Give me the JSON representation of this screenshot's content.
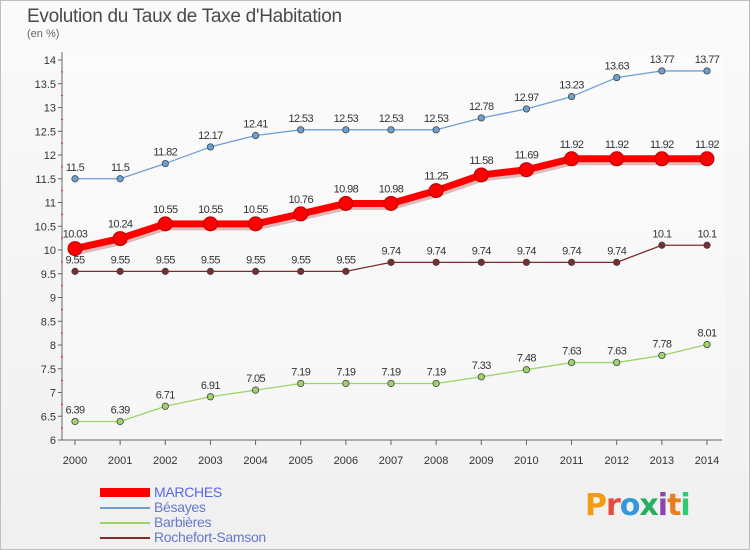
{
  "header": {
    "title": "Evolution du Taux de Taxe d'Habitation",
    "subtitle": "(en %)"
  },
  "logo": {
    "text": "Proxiti",
    "colors": [
      "#f39c12",
      "#e74c3c",
      "#3498db",
      "#27ae60",
      "#8e44ad",
      "#e67e22",
      "#2ecc71"
    ]
  },
  "chart_data": {
    "type": "line",
    "x": [
      2000,
      2001,
      2002,
      2003,
      2004,
      2005,
      2006,
      2007,
      2008,
      2009,
      2010,
      2011,
      2012,
      2013,
      2014
    ],
    "ylim": [
      6,
      14
    ],
    "yticks": [
      6,
      6.5,
      7,
      7.5,
      8,
      8.5,
      9,
      9.5,
      10,
      10.5,
      11,
      11.5,
      12,
      12.5,
      13,
      13.5,
      14
    ],
    "series": [
      {
        "name": "MARCHES",
        "color": "#ff0000",
        "emphasis": true,
        "values": [
          10.03,
          10.24,
          10.55,
          10.55,
          10.55,
          10.76,
          10.98,
          10.98,
          11.25,
          11.58,
          11.69,
          11.92,
          11.92,
          11.92,
          11.92
        ]
      },
      {
        "name": "Bésayes",
        "color": "#6da0d2",
        "values": [
          11.5,
          11.5,
          11.82,
          12.17,
          12.41,
          12.53,
          12.53,
          12.53,
          12.53,
          12.78,
          12.97,
          13.23,
          13.63,
          13.77,
          13.77
        ]
      },
      {
        "name": "Barbières",
        "color": "#9ed36a",
        "values": [
          6.39,
          6.39,
          6.71,
          6.91,
          7.05,
          7.19,
          7.19,
          7.19,
          7.19,
          7.33,
          7.48,
          7.63,
          7.63,
          7.78,
          8.01
        ]
      },
      {
        "name": "Rochefort-Samson",
        "color": "#7b2c2c",
        "values": [
          9.55,
          9.55,
          9.55,
          9.55,
          9.55,
          9.55,
          9.55,
          9.74,
          9.74,
          9.74,
          9.74,
          9.74,
          9.74,
          10.1,
          10.1
        ]
      }
    ]
  }
}
